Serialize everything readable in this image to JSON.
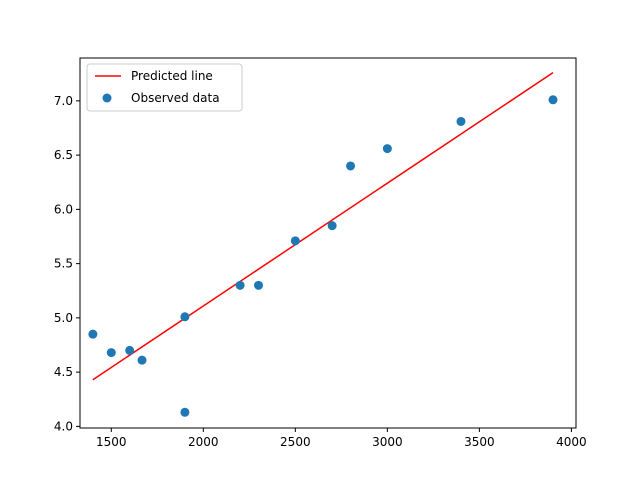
{
  "chart_data": {
    "type": "scatter",
    "title": "",
    "xlabel": "",
    "ylabel": "",
    "xlim": [
      1330,
      4025
    ],
    "ylim": [
      3.985,
      7.395
    ],
    "xticks": [
      1500,
      2000,
      2500,
      3000,
      3500,
      4000
    ],
    "yticks": [
      4.0,
      4.5,
      5.0,
      5.5,
      6.0,
      6.5,
      7.0
    ],
    "ytick_labels": [
      "4.0",
      "4.5",
      "5.0",
      "5.5",
      "6.0",
      "6.5",
      "7.0"
    ],
    "grid": false,
    "legend_position": "upper-left",
    "series": [
      {
        "name": "Predicted line",
        "kind": "line",
        "color": "#ff0000",
        "x": [
          1400,
          3900
        ],
        "y": [
          4.43,
          7.26
        ]
      },
      {
        "name": "Observed data",
        "kind": "scatter",
        "color": "#1f77b4",
        "x": [
          1400,
          1500,
          1600,
          1667,
          1900,
          1900,
          2200,
          2300,
          2500,
          2700,
          2800,
          3000,
          3400,
          3900
        ],
        "y": [
          4.85,
          4.68,
          4.7,
          4.61,
          5.01,
          4.13,
          5.3,
          5.3,
          5.71,
          5.85,
          6.4,
          6.56,
          6.81,
          7.01
        ]
      }
    ]
  }
}
